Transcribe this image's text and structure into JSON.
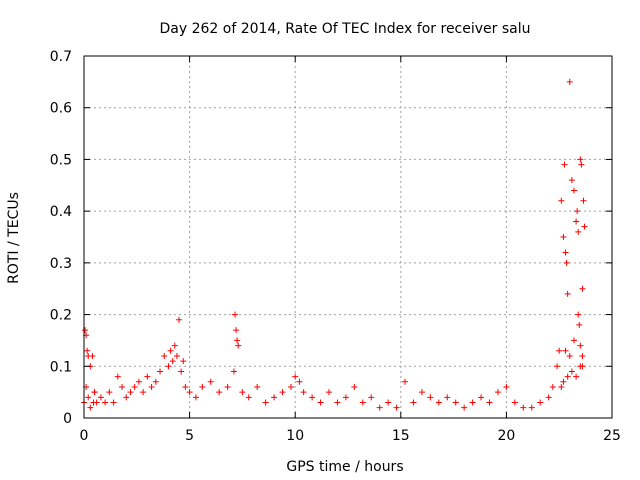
{
  "chart_data": {
    "type": "scatter",
    "title": "Day 262 of 2014, Rate Of TEC Index for receiver salu",
    "xlabel": "GPS time / hours",
    "ylabel": "ROTI / TECUs",
    "xlim": [
      0,
      25
    ],
    "ylim": [
      0,
      0.7
    ],
    "x_ticks": [
      "0",
      "5",
      "10",
      "15",
      "20",
      "25"
    ],
    "y_ticks": [
      "0",
      "0.1",
      "0.2",
      "0.3",
      "0.4",
      "0.5",
      "0.6",
      "0.7"
    ],
    "grid": true,
    "marker": "+",
    "color": "#ff0000",
    "series": [
      {
        "x": [
          0.0,
          0.05,
          0.1,
          0.15,
          0.2,
          0.3,
          0.4,
          0.5,
          0.6,
          0.1,
          0.2,
          0.3,
          0.45,
          0.5,
          0.8,
          1.0,
          1.2,
          1.4,
          1.6,
          1.8,
          2.0,
          2.2,
          2.4,
          2.6,
          2.8,
          3.0,
          3.2,
          3.4,
          3.6,
          3.8,
          4.0,
          4.1,
          4.2,
          4.3,
          4.4,
          4.5,
          4.6,
          4.7,
          4.8,
          5.0,
          5.3,
          5.6,
          6.0,
          6.4,
          6.8,
          7.1,
          7.15,
          7.2,
          7.25,
          7.3,
          7.5,
          7.8,
          8.2,
          8.6,
          9.0,
          9.4,
          9.8,
          10.0,
          10.2,
          10.4,
          10.8,
          11.2,
          11.6,
          12.0,
          12.4,
          12.8,
          13.2,
          13.6,
          14.0,
          14.4,
          14.8,
          15.2,
          15.6,
          16.0,
          16.4,
          16.8,
          17.2,
          17.6,
          18.0,
          18.4,
          18.8,
          19.2,
          19.6,
          20.0,
          20.4,
          20.8,
          21.2,
          21.6,
          22.0,
          22.2,
          22.4,
          22.5,
          22.6,
          22.7,
          22.75,
          22.8,
          22.85,
          22.9,
          23.0,
          23.1,
          23.2,
          23.3,
          23.35,
          23.4,
          23.45,
          23.5,
          23.55,
          23.6,
          23.65,
          23.7,
          23.5,
          23.6,
          23.4,
          23.2,
          23.0,
          22.9,
          22.6,
          22.8,
          23.3,
          23.6,
          22.7,
          23.1,
          23.5
        ],
        "y": [
          0.03,
          0.17,
          0.16,
          0.13,
          0.12,
          0.1,
          0.12,
          0.05,
          0.03,
          0.06,
          0.04,
          0.02,
          0.03,
          0.05,
          0.04,
          0.03,
          0.05,
          0.03,
          0.08,
          0.06,
          0.04,
          0.05,
          0.06,
          0.07,
          0.05,
          0.08,
          0.06,
          0.07,
          0.09,
          0.12,
          0.1,
          0.13,
          0.11,
          0.14,
          0.12,
          0.19,
          0.09,
          0.11,
          0.06,
          0.05,
          0.04,
          0.06,
          0.07,
          0.05,
          0.06,
          0.09,
          0.2,
          0.17,
          0.15,
          0.14,
          0.05,
          0.04,
          0.06,
          0.03,
          0.04,
          0.05,
          0.06,
          0.08,
          0.07,
          0.05,
          0.04,
          0.03,
          0.05,
          0.03,
          0.04,
          0.06,
          0.03,
          0.04,
          0.02,
          0.03,
          0.02,
          0.07,
          0.03,
          0.05,
          0.04,
          0.03,
          0.04,
          0.03,
          0.02,
          0.03,
          0.04,
          0.03,
          0.05,
          0.06,
          0.03,
          0.02,
          0.02,
          0.03,
          0.04,
          0.06,
          0.1,
          0.13,
          0.42,
          0.35,
          0.49,
          0.32,
          0.3,
          0.24,
          0.65,
          0.46,
          0.44,
          0.38,
          0.4,
          0.36,
          0.18,
          0.5,
          0.49,
          0.12,
          0.42,
          0.37,
          0.1,
          0.25,
          0.2,
          0.15,
          0.12,
          0.08,
          0.06,
          0.13,
          0.08,
          0.1,
          0.07,
          0.09,
          0.14
        ]
      }
    ]
  }
}
